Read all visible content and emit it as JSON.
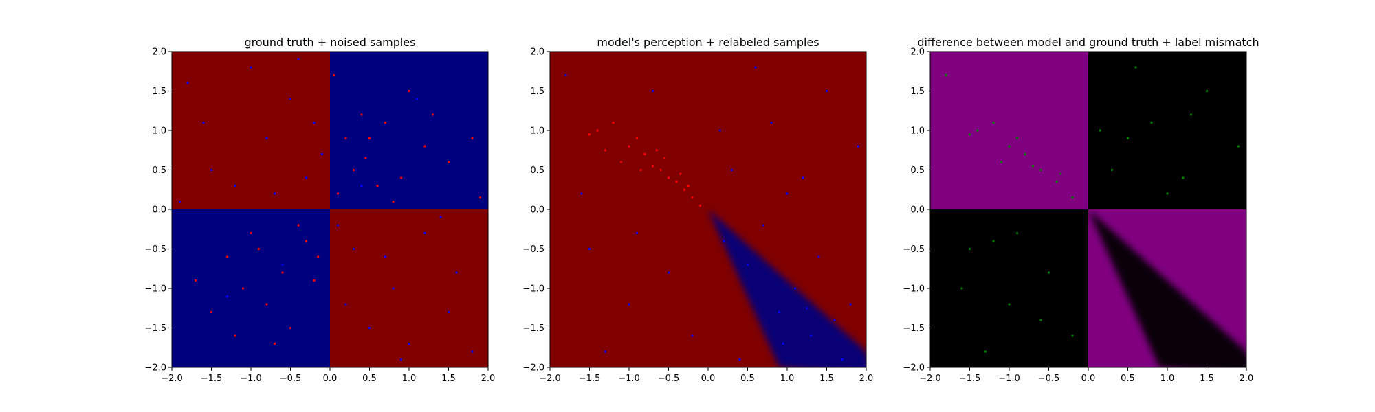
{
  "chart_data": [
    {
      "type": "scatter",
      "title": "ground truth + noised samples",
      "xlim": [
        -2.0,
        2.0
      ],
      "ylim": [
        -2.0,
        2.0
      ],
      "xticks": [
        "−2.0",
        "−1.5",
        "−1.0",
        "−0.5",
        "0.0",
        "0.5",
        "1.0",
        "1.5",
        "2.0"
      ],
      "yticks": [
        "−2.0",
        "−1.5",
        "−1.0",
        "−0.5",
        "0.0",
        "0.5",
        "1.0",
        "1.5",
        "2.0"
      ],
      "background": {
        "description": "XOR regions",
        "regions": [
          {
            "x": [
              -2,
              0
            ],
            "y": [
              0,
              2
            ],
            "color": "#800000"
          },
          {
            "x": [
              0,
              2
            ],
            "y": [
              0,
              2
            ],
            "color": "#00007f"
          },
          {
            "x": [
              -2,
              0
            ],
            "y": [
              -2,
              0
            ],
            "color": "#00007f"
          },
          {
            "x": [
              0,
              2
            ],
            "y": [
              -2,
              0
            ],
            "color": "#800000"
          }
        ]
      },
      "series": [
        {
          "color": "#ff0000",
          "points": [
            [
              0.1,
              0.2
            ],
            [
              0.3,
              0.5
            ],
            [
              0.5,
              0.9
            ],
            [
              0.7,
              1.1
            ],
            [
              0.9,
              0.4
            ],
            [
              1.2,
              0.8
            ],
            [
              0.4,
              1.2
            ],
            [
              0.8,
              0.1
            ],
            [
              1.0,
              1.5
            ],
            [
              1.5,
              0.6
            ],
            [
              0.2,
              0.9
            ],
            [
              0.6,
              0.3
            ],
            [
              1.3,
              1.2
            ],
            [
              0.45,
              0.65
            ],
            [
              1.8,
              0.9
            ],
            [
              -0.3,
              -0.4
            ],
            [
              -0.6,
              -0.8
            ],
            [
              -1.0,
              -0.3
            ],
            [
              -0.8,
              -1.2
            ],
            [
              -1.3,
              -0.6
            ],
            [
              -0.5,
              -1.5
            ],
            [
              -0.2,
              -0.9
            ],
            [
              -1.1,
              -1.0
            ],
            [
              -0.9,
              -0.5
            ],
            [
              -1.5,
              -1.3
            ],
            [
              -0.4,
              -0.2
            ],
            [
              -0.7,
              -1.7
            ],
            [
              -1.2,
              -1.6
            ],
            [
              -0.15,
              -0.6
            ],
            [
              -1.7,
              -0.9
            ],
            [
              0.05,
              1.7
            ],
            [
              1.9,
              0.15
            ]
          ]
        },
        {
          "color": "#0000ff",
          "points": [
            [
              -0.3,
              0.4
            ],
            [
              -0.8,
              0.9
            ],
            [
              -1.2,
              0.3
            ],
            [
              -0.5,
              1.4
            ],
            [
              -1.6,
              1.1
            ],
            [
              -0.1,
              0.7
            ],
            [
              -1.0,
              1.8
            ],
            [
              -1.5,
              0.5
            ],
            [
              -0.7,
              0.2
            ],
            [
              -1.8,
              1.6
            ],
            [
              0.3,
              -0.5
            ],
            [
              0.8,
              -1.0
            ],
            [
              1.2,
              -0.3
            ],
            [
              0.5,
              -1.5
            ],
            [
              1.6,
              -0.8
            ],
            [
              0.1,
              -0.2
            ],
            [
              1.0,
              -1.7
            ],
            [
              1.5,
              -1.3
            ],
            [
              0.7,
              -0.6
            ],
            [
              1.8,
              -1.8
            ],
            [
              0.4,
              0.3
            ],
            [
              -0.6,
              -0.7
            ],
            [
              1.1,
              1.4
            ],
            [
              -1.3,
              -1.1
            ],
            [
              0.2,
              -1.2
            ],
            [
              -0.2,
              1.1
            ],
            [
              1.4,
              -0.1
            ],
            [
              -1.9,
              0.1
            ],
            [
              0.9,
              -1.9
            ],
            [
              -0.4,
              1.9
            ]
          ]
        }
      ]
    },
    {
      "type": "scatter",
      "title": "model's perception + relabeled samples",
      "xlim": [
        -2.0,
        2.0
      ],
      "ylim": [
        -2.0,
        2.0
      ],
      "xticks": [
        "−2.0",
        "−1.5",
        "−1.0",
        "−0.5",
        "0.0",
        "0.5",
        "1.0",
        "1.5",
        "2.0"
      ],
      "yticks": [
        "−2.0",
        "−1.5",
        "−1.0",
        "−0.5",
        "0.0",
        "0.5",
        "1.0",
        "1.5",
        "2.0"
      ],
      "background": {
        "description": "model decision regions",
        "base_color": "#800000",
        "wedge_color": "#00007f",
        "wedge_apex": [
          0.0,
          0.0
        ],
        "wedge_edges": [
          [
            0.9,
            -2.0
          ],
          [
            2.0,
            -1.8
          ]
        ]
      },
      "series": [
        {
          "color": "#ff0000",
          "points": [
            [
              -1.2,
              1.1
            ],
            [
              -1.0,
              0.8
            ],
            [
              -0.8,
              0.7
            ],
            [
              -0.6,
              0.5
            ],
            [
              -0.5,
              0.4
            ],
            [
              -0.4,
              0.35
            ],
            [
              -0.3,
              0.25
            ],
            [
              -0.2,
              0.15
            ],
            [
              -0.1,
              0.05
            ],
            [
              -1.4,
              1.0
            ],
            [
              -0.9,
              0.9
            ],
            [
              -0.7,
              0.55
            ],
            [
              -1.1,
              0.6
            ],
            [
              -0.55,
              0.65
            ],
            [
              -0.35,
              0.45
            ],
            [
              -0.25,
              0.3
            ],
            [
              -1.3,
              0.75
            ],
            [
              -0.85,
              0.5
            ],
            [
              -0.65,
              0.75
            ],
            [
              -1.5,
              0.95
            ]
          ]
        },
        {
          "color": "#0000ff",
          "points": [
            [
              0.3,
              0.5
            ],
            [
              0.8,
              1.1
            ],
            [
              1.2,
              0.4
            ],
            [
              1.5,
              1.5
            ],
            [
              -1.5,
              -0.5
            ],
            [
              -1.0,
              -1.2
            ],
            [
              -0.5,
              -0.8
            ],
            [
              0.5,
              -0.7
            ],
            [
              0.9,
              -1.3
            ],
            [
              1.3,
              -1.6
            ],
            [
              1.7,
              -1.9
            ],
            [
              0.2,
              -0.4
            ],
            [
              1.1,
              -1.0
            ],
            [
              1.6,
              -1.4
            ],
            [
              -1.8,
              1.7
            ],
            [
              -0.2,
              -1.6
            ],
            [
              0.6,
              1.8
            ],
            [
              1.9,
              0.8
            ],
            [
              -1.3,
              -1.8
            ],
            [
              0.4,
              -1.9
            ],
            [
              1.0,
              0.2
            ],
            [
              -0.7,
              1.5
            ],
            [
              0.7,
              -0.2
            ],
            [
              1.4,
              -0.6
            ],
            [
              -1.6,
              0.2
            ],
            [
              0.15,
              1.0
            ],
            [
              1.8,
              -1.2
            ],
            [
              -0.9,
              -0.3
            ],
            [
              0.95,
              -1.7
            ],
            [
              1.25,
              -1.25
            ]
          ]
        }
      ]
    },
    {
      "type": "scatter",
      "title": "difference between model and ground truth + label mismatch",
      "xlim": [
        -2.0,
        2.0
      ],
      "ylim": [
        -2.0,
        2.0
      ],
      "xticks": [
        "−2.0",
        "−1.5",
        "−1.0",
        "−0.5",
        "0.0",
        "0.5",
        "1.0",
        "1.5",
        "2.0"
      ],
      "yticks": [
        "−2.0",
        "−1.5",
        "−1.0",
        "−0.5",
        "0.0",
        "0.5",
        "1.0",
        "1.5",
        "2.0"
      ],
      "background": {
        "description": "mismatch regions",
        "regions": [
          {
            "x": [
              -2,
              0
            ],
            "y": [
              0,
              2
            ],
            "color": "#800080"
          },
          {
            "x": [
              0,
              2
            ],
            "y": [
              0,
              2
            ],
            "color": "#000000"
          },
          {
            "x": [
              -2,
              0
            ],
            "y": [
              -2,
              0
            ],
            "color": "#000000"
          },
          {
            "x": [
              0,
              2
            ],
            "y": [
              -2,
              0
            ],
            "color": "#800080"
          }
        ],
        "wedge_color": "#000000",
        "wedge_apex": [
          0.0,
          0.0
        ],
        "wedge_edges": [
          [
            0.9,
            -2.0
          ],
          [
            2.0,
            -1.8
          ]
        ]
      },
      "series": [
        {
          "color": "#008000",
          "points": [
            [
              -1.2,
              1.1
            ],
            [
              -1.0,
              0.8
            ],
            [
              -0.8,
              0.7
            ],
            [
              -0.6,
              0.5
            ],
            [
              -0.4,
              0.35
            ],
            [
              -0.2,
              0.15
            ],
            [
              -1.4,
              1.0
            ],
            [
              -0.9,
              0.9
            ],
            [
              -0.7,
              0.55
            ],
            [
              -1.1,
              0.6
            ],
            [
              -0.35,
              0.45
            ],
            [
              -1.5,
              0.95
            ],
            [
              0.3,
              0.5
            ],
            [
              0.8,
              1.1
            ],
            [
              1.2,
              0.4
            ],
            [
              1.5,
              1.5
            ],
            [
              0.6,
              1.8
            ],
            [
              1.9,
              0.8
            ],
            [
              1.0,
              0.2
            ],
            [
              0.15,
              1.0
            ],
            [
              0.5,
              0.9
            ],
            [
              1.3,
              1.2
            ],
            [
              -1.5,
              -0.5
            ],
            [
              -1.0,
              -1.2
            ],
            [
              -0.5,
              -0.8
            ],
            [
              -1.8,
              1.7
            ],
            [
              -0.2,
              -1.6
            ],
            [
              -1.3,
              -1.8
            ],
            [
              -0.9,
              -0.3
            ],
            [
              -1.6,
              -1.0
            ],
            [
              -0.6,
              -1.4
            ],
            [
              -1.2,
              -0.4
            ]
          ]
        }
      ]
    }
  ]
}
